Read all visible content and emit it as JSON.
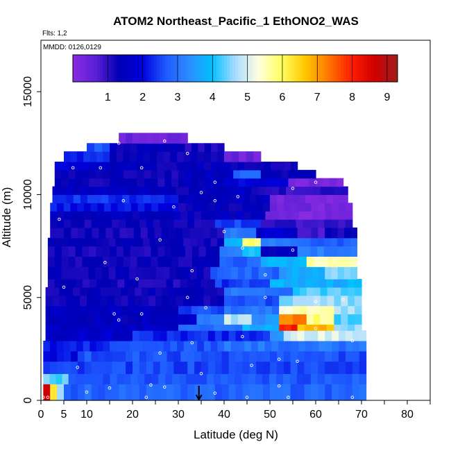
{
  "chart_data": {
    "type": "heatmap",
    "title": "ATOM2 Northeast_Pacific_1 EthONO2_WAS",
    "subtitle_flights": "Flts: 1,2",
    "subtitle_dates": "MMDD: 0126,0129",
    "xlabel": "Latitude (deg N)",
    "ylabel": "Altitude (m)",
    "xlim": [
      0,
      85
    ],
    "ylim": [
      0,
      17500
    ],
    "x_ticks": [
      0,
      5,
      10,
      20,
      30,
      40,
      50,
      60,
      70,
      80
    ],
    "x_minor_ticks": [
      15,
      25,
      35,
      45,
      55,
      65,
      75,
      85
    ],
    "y_ticks": [
      0,
      5000,
      10000,
      15000
    ],
    "colorbar": {
      "min": 0,
      "max": 9.3,
      "ticks": [
        1,
        2,
        3,
        4,
        5,
        6,
        7,
        8,
        9
      ],
      "colors": [
        "#8a2be2",
        "#5a1fd6",
        "#0000b4",
        "#0000dd",
        "#1e5aff",
        "#2e8bff",
        "#00c0ff",
        "#a8dcff",
        "#ffffe0",
        "#ffff60",
        "#ffc800",
        "#ff7800",
        "#ff1e00",
        "#d00000",
        "#9e1e1e"
      ]
    },
    "arrow_latitude": 34.5,
    "rows": [
      {
        "y0": 0,
        "y1": 800,
        "x0": 0.5,
        "x1": 71,
        "segs": [
          [
            0.5,
            2,
            8.5
          ],
          [
            2,
            3.5,
            6.5
          ],
          [
            3.5,
            5,
            4.5
          ],
          [
            5,
            71,
            2.8
          ]
        ]
      },
      {
        "y0": 800,
        "y1": 1300,
        "x0": 0.5,
        "x1": 71,
        "segs": [
          [
            0.5,
            6,
            4.3
          ],
          [
            6,
            71,
            2.7
          ]
        ]
      },
      {
        "y0": 1300,
        "y1": 1900,
        "x0": 0.5,
        "x1": 71,
        "segs": [
          [
            0.5,
            71,
            2.5
          ]
        ]
      },
      {
        "y0": 1900,
        "y1": 2400,
        "x0": 0.5,
        "x1": 71,
        "segs": [
          [
            0.5,
            8,
            2.0
          ],
          [
            8,
            71,
            2.6
          ]
        ]
      },
      {
        "y0": 2400,
        "y1": 2900,
        "x0": 0.5,
        "x1": 71,
        "segs": [
          [
            0.5,
            15,
            2.2
          ],
          [
            15,
            40,
            2.6
          ],
          [
            40,
            71,
            3.0
          ]
        ]
      },
      {
        "y0": 2900,
        "y1": 3400,
        "x0": 1,
        "x1": 71,
        "segs": [
          [
            1,
            20,
            1.7
          ],
          [
            20,
            50,
            2.3
          ],
          [
            50,
            53,
            3.5
          ],
          [
            53,
            71,
            5.0
          ]
        ]
      },
      {
        "y0": 3400,
        "y1": 3700,
        "x0": 1,
        "x1": 70,
        "segs": [
          [
            1,
            30,
            1.6
          ],
          [
            30,
            44,
            3.0
          ],
          [
            44,
            52,
            3.8
          ],
          [
            52,
            56,
            8.0
          ],
          [
            56,
            64,
            6.8
          ],
          [
            64,
            70,
            4.5
          ]
        ]
      },
      {
        "y0": 3700,
        "y1": 4200,
        "x0": 1,
        "x1": 70,
        "segs": [
          [
            1,
            34,
            1.5
          ],
          [
            34,
            40,
            3.1
          ],
          [
            40,
            46,
            4.8
          ],
          [
            46,
            52,
            3.4
          ],
          [
            52,
            58,
            7.3
          ],
          [
            58,
            64,
            5.8
          ],
          [
            64,
            70,
            4.3
          ]
        ]
      },
      {
        "y0": 4200,
        "y1": 4600,
        "x0": 1,
        "x1": 70,
        "segs": [
          [
            1,
            30,
            1.5
          ],
          [
            30,
            40,
            2.5
          ],
          [
            40,
            52,
            3.0
          ],
          [
            52,
            64,
            5.5
          ],
          [
            64,
            70,
            4.6
          ]
        ]
      },
      {
        "y0": 4600,
        "y1": 5100,
        "x0": 1,
        "x1": 70,
        "segs": [
          [
            1,
            40,
            1.3
          ],
          [
            40,
            52,
            2.6
          ],
          [
            52,
            70,
            4.6
          ]
        ]
      },
      {
        "y0": 5100,
        "y1": 5500,
        "x0": 1,
        "x1": 70,
        "segs": [
          [
            1,
            40,
            1.3
          ],
          [
            40,
            55,
            3.0
          ],
          [
            55,
            70,
            4.3
          ]
        ]
      },
      {
        "y0": 5500,
        "y1": 5900,
        "x0": 1.5,
        "x1": 70,
        "segs": [
          [
            1.5,
            38,
            1.2
          ],
          [
            38,
            50,
            2.4
          ],
          [
            50,
            70,
            3.8
          ]
        ]
      },
      {
        "y0": 5900,
        "y1": 6500,
        "x0": 1.5,
        "x1": 69,
        "segs": [
          [
            1.5,
            37,
            1.3
          ],
          [
            37,
            52,
            2.8
          ],
          [
            52,
            62,
            3.6
          ],
          [
            62,
            69,
            4.5
          ]
        ]
      },
      {
        "y0": 6500,
        "y1": 7000,
        "x0": 1.5,
        "x1": 69,
        "segs": [
          [
            1.5,
            39,
            1.3
          ],
          [
            39,
            48,
            2.8
          ],
          [
            48,
            58,
            3.8
          ],
          [
            58,
            69,
            5.6
          ]
        ]
      },
      {
        "y0": 7000,
        "y1": 7500,
        "x0": 1.5,
        "x1": 69,
        "segs": [
          [
            1.5,
            39,
            1.2
          ],
          [
            39,
            44,
            3.0
          ],
          [
            44,
            48,
            4.0
          ],
          [
            48,
            56,
            1.5
          ],
          [
            56,
            69,
            3.2
          ]
        ]
      },
      {
        "y0": 7500,
        "y1": 7900,
        "x0": 1.5,
        "x1": 69,
        "segs": [
          [
            1.5,
            40,
            1.3
          ],
          [
            40,
            44,
            3.8
          ],
          [
            44,
            48,
            5.8
          ],
          [
            48,
            56,
            3.0
          ],
          [
            56,
            69,
            2.8
          ]
        ]
      },
      {
        "y0": 7900,
        "y1": 8400,
        "x0": 2,
        "x1": 69,
        "segs": [
          [
            2,
            40,
            1.2
          ],
          [
            40,
            47,
            3.0
          ],
          [
            47,
            56,
            1.8
          ],
          [
            56,
            62,
            0.8
          ],
          [
            62,
            69,
            1.2
          ]
        ]
      },
      {
        "y0": 8400,
        "y1": 8800,
        "x0": 2,
        "x1": 68,
        "segs": [
          [
            2,
            38,
            1.3
          ],
          [
            38,
            48,
            2.5
          ],
          [
            48,
            68,
            1.0
          ]
        ]
      },
      {
        "y0": 8800,
        "y1": 9200,
        "x0": 2,
        "x1": 68,
        "segs": [
          [
            2,
            38,
            1.4
          ],
          [
            38,
            49,
            1.5
          ],
          [
            49,
            68,
            0.2
          ]
        ]
      },
      {
        "y0": 9200,
        "y1": 9600,
        "x0": 2,
        "x1": 68,
        "segs": [
          [
            2,
            30,
            2.1
          ],
          [
            30,
            38,
            1.3
          ],
          [
            38,
            50,
            1.4
          ],
          [
            50,
            68,
            0.3
          ]
        ]
      },
      {
        "y0": 9600,
        "y1": 10000,
        "x0": 2.5,
        "x1": 67,
        "segs": [
          [
            2.5,
            30,
            2.3
          ],
          [
            30,
            38,
            1.5
          ],
          [
            38,
            50,
            1.5
          ],
          [
            50,
            67,
            0.3
          ]
        ]
      },
      {
        "y0": 10000,
        "y1": 10400,
        "x0": 2.5,
        "x1": 67,
        "segs": [
          [
            2.5,
            28,
            1.5
          ],
          [
            28,
            38,
            1.3
          ],
          [
            38,
            46,
            1.5
          ],
          [
            46,
            67,
            1.0
          ]
        ]
      },
      {
        "y0": 10400,
        "y1": 10800,
        "x0": 3,
        "x1": 66,
        "segs": [
          [
            3,
            30,
            1.3
          ],
          [
            30,
            40,
            1.5
          ],
          [
            40,
            54,
            1.9
          ],
          [
            54,
            66,
            0.3
          ]
        ]
      },
      {
        "y0": 10800,
        "y1": 11200,
        "x0": 3,
        "x1": 60,
        "segs": [
          [
            3,
            30,
            1.3
          ],
          [
            30,
            42,
            1.5
          ],
          [
            42,
            48,
            2.7
          ],
          [
            48,
            60,
            1.4
          ]
        ]
      },
      {
        "y0": 11200,
        "y1": 11600,
        "x0": 3,
        "x1": 56,
        "segs": [
          [
            3,
            15,
            1.8
          ],
          [
            15,
            40,
            1.4
          ],
          [
            40,
            56,
            1.3
          ]
        ]
      },
      {
        "y0": 11600,
        "y1": 12100,
        "x0": 5,
        "x1": 48,
        "segs": [
          [
            5,
            15,
            2.2
          ],
          [
            15,
            40,
            1.3
          ],
          [
            40,
            48,
            0.4
          ]
        ]
      },
      {
        "y0": 12100,
        "y1": 12500,
        "x0": 10,
        "x1": 40,
        "segs": [
          [
            10,
            15,
            2.6
          ],
          [
            15,
            30,
            1.4
          ],
          [
            30,
            40,
            1.2
          ]
        ]
      },
      {
        "y0": 12500,
        "y1": 13000,
        "x0": 17,
        "x1": 32,
        "segs": [
          [
            17,
            26,
            0.5
          ],
          [
            26,
            32,
            0.3
          ]
        ]
      }
    ],
    "points": [
      [
        0.5,
        150
      ],
      [
        1.5,
        150
      ],
      [
        23,
        150
      ],
      [
        45,
        150
      ],
      [
        54,
        150
      ],
      [
        68,
        150
      ],
      [
        10,
        400
      ],
      [
        38,
        350
      ],
      [
        15,
        600
      ],
      [
        24,
        750
      ],
      [
        52,
        700
      ],
      [
        35,
        1300
      ],
      [
        46,
        1700
      ],
      [
        56,
        1900
      ],
      [
        26,
        2300
      ],
      [
        33,
        2800
      ],
      [
        44,
        3100
      ],
      [
        60,
        3500
      ],
      [
        17,
        3900
      ],
      [
        22,
        4200
      ],
      [
        36,
        4500
      ],
      [
        49,
        5000
      ],
      [
        60,
        4800
      ],
      [
        21,
        5900
      ],
      [
        33,
        6300
      ],
      [
        49,
        6100
      ],
      [
        14,
        6700
      ],
      [
        26,
        7800
      ],
      [
        40,
        8200
      ],
      [
        55,
        7300
      ],
      [
        4,
        8800
      ],
      [
        18,
        9700
      ],
      [
        29,
        9400
      ],
      [
        43,
        9900
      ],
      [
        35,
        10100
      ],
      [
        38,
        10600
      ],
      [
        60,
        10600
      ],
      [
        13,
        11300
      ],
      [
        22,
        11300
      ],
      [
        32,
        12000
      ],
      [
        27,
        12600
      ],
      [
        49,
        11800
      ],
      [
        7,
        11300
      ],
      [
        17,
        12500
      ],
      [
        5,
        5500
      ],
      [
        64,
        6800
      ],
      [
        66,
        4900
      ],
      [
        68,
        2900
      ],
      [
        52,
        2000
      ],
      [
        27,
        650
      ],
      [
        8,
        1600
      ],
      [
        16,
        4200
      ],
      [
        32,
        5000
      ],
      [
        44,
        7400
      ],
      [
        38,
        9700
      ],
      [
        55,
        10300
      ]
    ]
  }
}
